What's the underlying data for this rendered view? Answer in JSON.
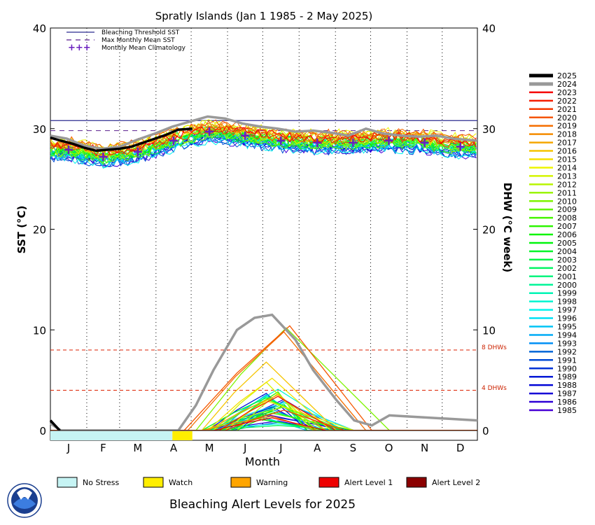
{
  "chart_data": {
    "type": "line",
    "title": "Spratly Islands     (Jan 1 1985 - 2 May 2025)",
    "xlabel": "Month",
    "ylabel_left": "SST (°C)",
    "ylabel_right": "DHW (°C week)",
    "ylim": [
      0,
      40
    ],
    "x_tick_labels": [
      "J",
      "F",
      "M",
      "A",
      "M",
      "J",
      "J",
      "A",
      "S",
      "O",
      "N",
      "D"
    ],
    "y_ticks": [
      0,
      10,
      20,
      30,
      40
    ],
    "reference_lines": {
      "bleaching_threshold_sst": 30.8,
      "max_monthly_mean_sst": 29.8,
      "dhw_4_label": "4 DHWs",
      "dhw_8_label": "8 DHWs",
      "dhw_4": 4,
      "dhw_8": 8
    },
    "legend_top": [
      {
        "label": "Bleaching Threshold SST",
        "style": "solid",
        "color": "#2b2b8f"
      },
      {
        "label": "Max Monthly Mean SST",
        "style": "dashed",
        "color": "#5a1f8f"
      },
      {
        "label": "Monthly Mean Climatology",
        "style": "plus",
        "color": "#6a1fbf"
      }
    ],
    "monthly_mean_climatology": [
      27.9,
      27.2,
      27.7,
      28.8,
      29.7,
      29.3,
      28.8,
      28.6,
      28.6,
      28.8,
      28.6,
      28.2
    ],
    "series_2025_sst": {
      "name": "2025",
      "x_doy": [
        1,
        10,
        20,
        30,
        40,
        50,
        60,
        70,
        80,
        90,
        100,
        110,
        122
      ],
      "sst": [
        29.1,
        28.8,
        28.5,
        28.1,
        27.8,
        27.9,
        28.0,
        28.2,
        28.6,
        29.0,
        29.4,
        29.9,
        30.0
      ]
    },
    "series_2025_dhw": {
      "name": "2025",
      "x_doy": [
        1,
        5,
        9
      ],
      "dhw": [
        1.0,
        0.5,
        0.0
      ]
    },
    "series_2024_sst": {
      "name": "2024",
      "x_doy": [
        1,
        15,
        30,
        45,
        60,
        75,
        90,
        105,
        120,
        135,
        150,
        165,
        180,
        195,
        210,
        225,
        240,
        255,
        270,
        285,
        300,
        315,
        330,
        345,
        365
      ],
      "sst": [
        29.3,
        29.0,
        28.3,
        28.0,
        28.2,
        28.9,
        29.5,
        30.2,
        30.7,
        31.2,
        31.0,
        30.5,
        30.2,
        30.0,
        29.7,
        29.8,
        29.6,
        29.3,
        30.0,
        29.5,
        29.3,
        29.2,
        29.3,
        29.0,
        28.8
      ]
    },
    "series_2024_dhw": {
      "name": "2024",
      "x_doy": [
        1,
        6,
        10,
        110,
        125,
        140,
        160,
        175,
        190,
        210,
        225,
        245,
        260,
        275,
        290,
        305,
        365
      ],
      "dhw": [
        0.7,
        0.3,
        0.0,
        0.0,
        2.5,
        6.0,
        10.0,
        11.2,
        11.5,
        9.0,
        6.0,
        3.0,
        1.0,
        0.5,
        1.5,
        1.4,
        1.0
      ]
    },
    "year_dhw_peaks": [
      {
        "year": "2020",
        "start": 115,
        "peak_doy": 205,
        "peak": 10.4,
        "end": 275
      },
      {
        "year": "2019",
        "start": 118,
        "peak_doy": 200,
        "peak": 9.8,
        "end": 270
      },
      {
        "year": "2010",
        "start": 125,
        "peak_doy": 202,
        "peak": 10.2,
        "end": 290
      },
      {
        "year": "2016",
        "start": 130,
        "peak_doy": 185,
        "peak": 6.8,
        "end": 245
      },
      {
        "year": "2015",
        "start": 135,
        "peak_doy": 190,
        "peak": 5.2,
        "end": 240
      },
      {
        "year": "1998",
        "start": 140,
        "peak_doy": 195,
        "peak": 4.1,
        "end": 250
      },
      {
        "year": "1993",
        "start": 145,
        "peak_doy": 190,
        "peak": 2.1,
        "end": 235
      },
      {
        "year": "2013",
        "start": 140,
        "peak_doy": 185,
        "peak": 4.8,
        "end": 225
      }
    ],
    "year_legend": [
      "2025",
      "2024",
      "2023",
      "2022",
      "2021",
      "2020",
      "2019",
      "2018",
      "2017",
      "2016",
      "2015",
      "2014",
      "2013",
      "2012",
      "2011",
      "2010",
      "2009",
      "2008",
      "2007",
      "2006",
      "2005",
      "2004",
      "2003",
      "2002",
      "2001",
      "2000",
      "1999",
      "1998",
      "1997",
      "1996",
      "1995",
      "1994",
      "1993",
      "1992",
      "1991",
      "1990",
      "1989",
      "1988",
      "1987",
      "1986",
      "1985"
    ],
    "alert_bar": [
      {
        "level": "No Stress",
        "from_doy": 1,
        "to_doy": 105,
        "color": "#c6f4f4"
      },
      {
        "level": "Watch",
        "from_doy": 105,
        "to_doy": 122,
        "color": "#ffee00"
      }
    ],
    "alert_legend": [
      {
        "label": "No Stress",
        "color": "#c6f4f4"
      },
      {
        "label": "Watch",
        "color": "#ffee00"
      },
      {
        "label": "Warning",
        "color": "#ffa500"
      },
      {
        "label": "Alert Level 1",
        "color": "#ee0000"
      },
      {
        "label": "Alert Level 2",
        "color": "#8b0000"
      }
    ],
    "footer_title": "Bleaching Alert Levels for 2025"
  }
}
